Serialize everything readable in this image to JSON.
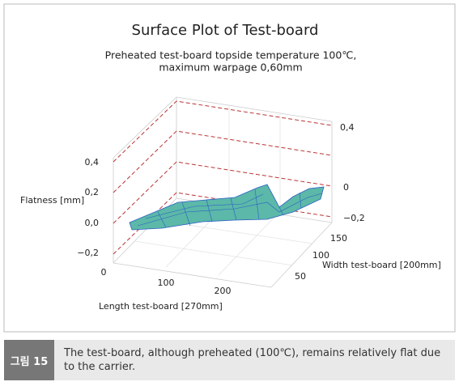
{
  "figure": {
    "title": "Surface Plot of Test-board",
    "subtitle": [
      "Preheated test-board topside temperature 100℃,",
      "maximum warpage 0,60mm"
    ],
    "z_axis": {
      "label": "Flatness [mm]",
      "ticks": [
        "0,4",
        "0,2",
        "0,0",
        "−0,2"
      ]
    },
    "right_ticks": [
      "0,4",
      "0",
      "−0,2"
    ],
    "x_axis": {
      "label": "Length test-board [270mm]",
      "ticks": [
        "0",
        "100",
        "200"
      ]
    },
    "y_axis": {
      "label": "Width test-board [200mm]",
      "ticks": [
        "150",
        "100",
        "50"
      ]
    }
  },
  "caption": {
    "tag": "그림 15",
    "text": "The test-board, although preheated (100℃), remains relatively flat due to the carrier."
  }
}
